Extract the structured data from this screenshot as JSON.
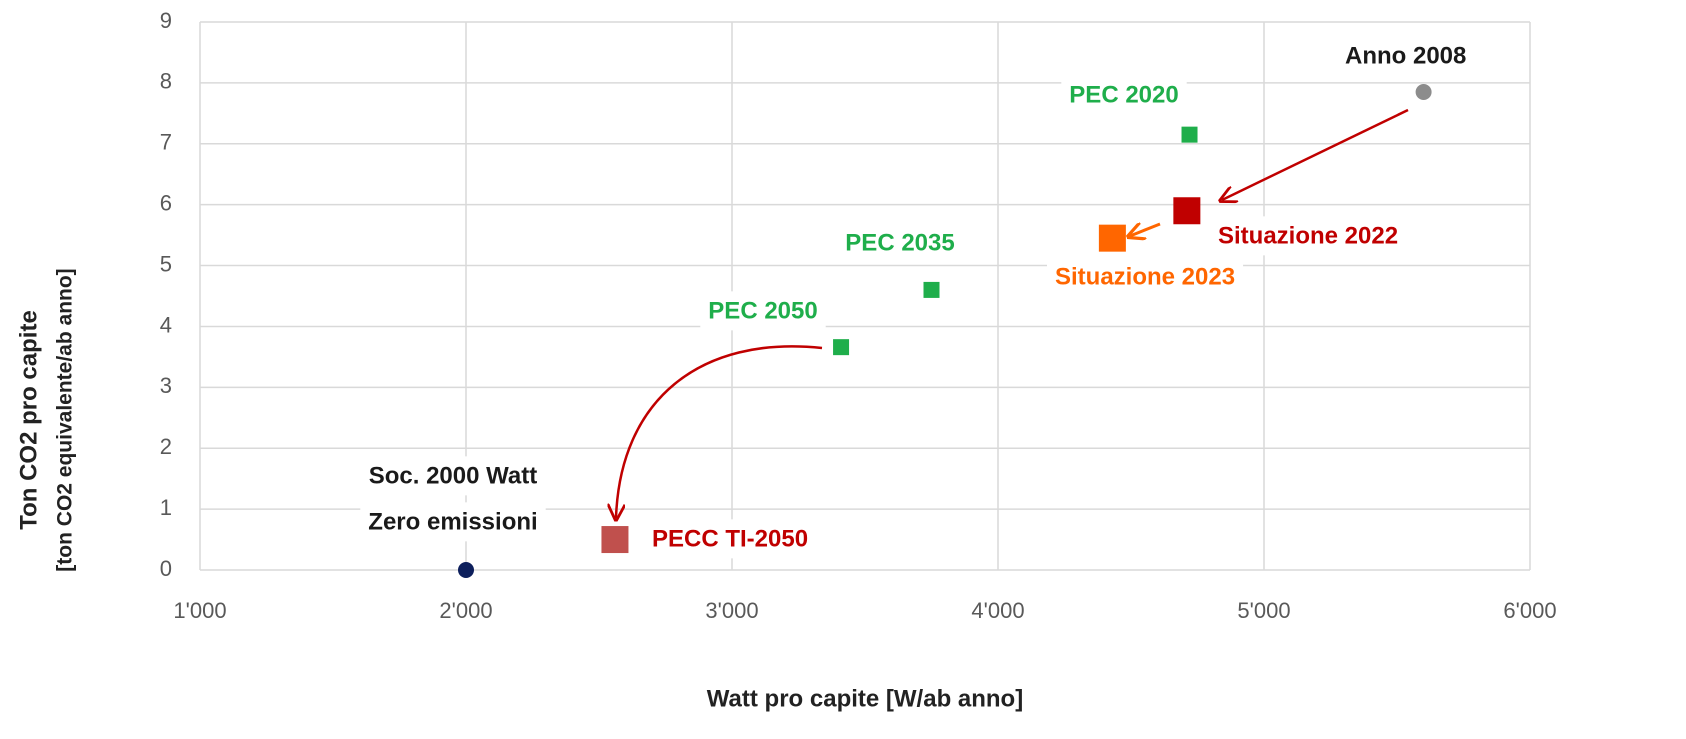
{
  "chart_data": {
    "type": "scatter",
    "x_label": "Watt pro capite [W/ab anno]",
    "y_label": [
      "Ton CO2 pro capite",
      "[ton CO2 equivalente/ab anno]"
    ],
    "xlim": [
      1000,
      6000
    ],
    "ylim": [
      0,
      9
    ],
    "xticks": [
      {
        "value": 1000,
        "label": "1'000"
      },
      {
        "value": 2000,
        "label": "2'000"
      },
      {
        "value": 3000,
        "label": "3'000"
      },
      {
        "value": 4000,
        "label": "4'000"
      },
      {
        "value": 5000,
        "label": "5'000"
      },
      {
        "value": 6000,
        "label": "6'000"
      }
    ],
    "yticks": [
      0,
      1,
      2,
      3,
      4,
      5,
      6,
      7,
      8,
      9
    ],
    "grid": true,
    "series": [
      {
        "name": "Anno 2008",
        "x": [
          5600
        ],
        "values": [
          7.85
        ],
        "color": "#8c8c8c",
        "label_color": "#1a1a1a",
        "marker": "circle"
      },
      {
        "name": "PEC 2020",
        "x": [
          4720
        ],
        "values": [
          7.15
        ],
        "color": "#1fae4b",
        "label_color": "#1fae4b",
        "marker": "square"
      },
      {
        "name": "Situazione 2022",
        "x": [
          4710
        ],
        "values": [
          5.9
        ],
        "color": "#c00000",
        "label_color": "#c00000",
        "marker": "square-large"
      },
      {
        "name": "Situazione 2023",
        "x": [
          4430
        ],
        "values": [
          5.45
        ],
        "color": "#ff6600",
        "label_color": "#ff6600",
        "marker": "square-large"
      },
      {
        "name": "PEC 2035",
        "x": [
          3750
        ],
        "values": [
          4.6
        ],
        "color": "#1fae4b",
        "label_color": "#1fae4b",
        "marker": "square"
      },
      {
        "name": "PEC 2050",
        "x": [
          3410
        ],
        "values": [
          3.66
        ],
        "color": "#1fae4b",
        "label_color": "#1fae4b",
        "marker": "square"
      },
      {
        "name": "PECC TI-2050",
        "x": [
          2560
        ],
        "values": [
          0.5
        ],
        "color": "#c0504d",
        "label_color": "#c00000",
        "marker": "square-large"
      },
      {
        "name": [
          "Soc. 2000 Watt",
          "Zero emissioni"
        ],
        "x": [
          2000
        ],
        "values": [
          0
        ],
        "color": "#0d1f5c",
        "label_color": "#1a1a1a",
        "marker": "circle"
      }
    ]
  }
}
